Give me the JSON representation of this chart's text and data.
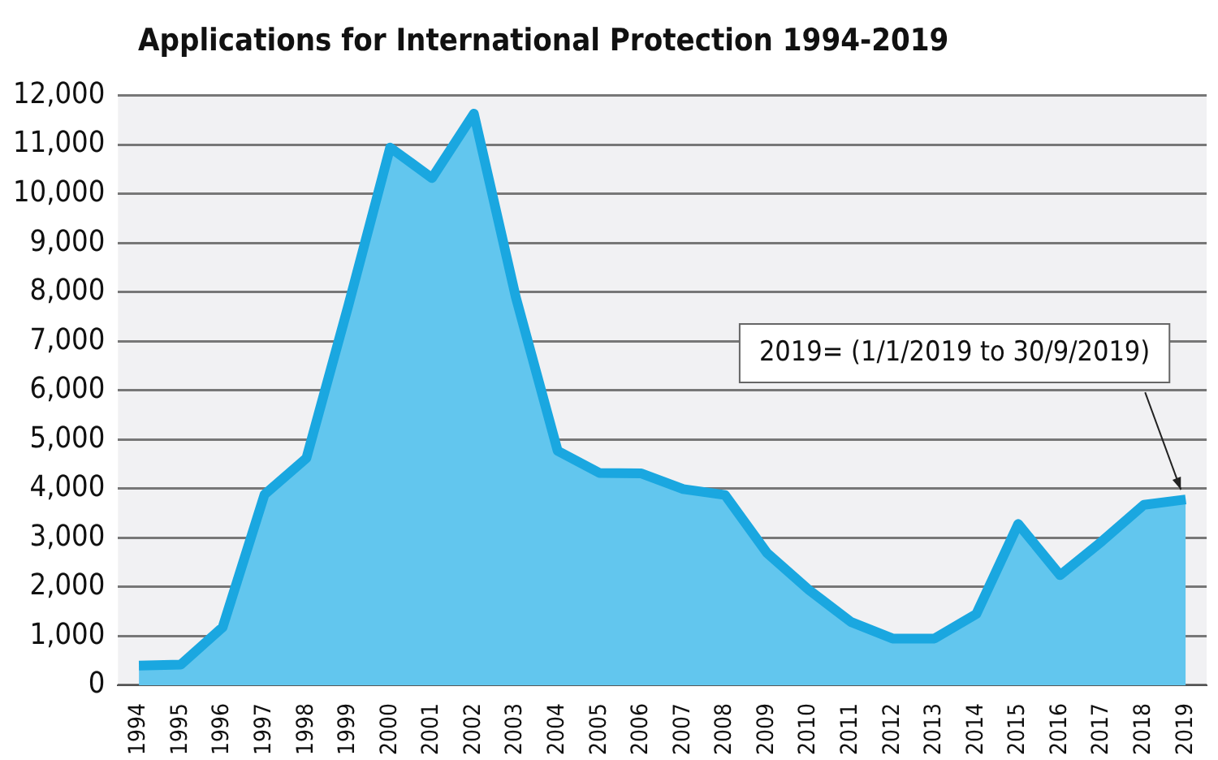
{
  "chart_data": {
    "type": "area",
    "title": "Applications for International Protection 1994-2019",
    "categories": [
      "1994",
      "1995",
      "1996",
      "1997",
      "1998",
      "1999",
      "2000",
      "2001",
      "2002",
      "2003",
      "2004",
      "2005",
      "2006",
      "2007",
      "2008",
      "2009",
      "2010",
      "2011",
      "2012",
      "2013",
      "2014",
      "2015",
      "2016",
      "2017",
      "2018",
      "2019"
    ],
    "series": [
      {
        "color": "#1aa7e0",
        "values": [
          400,
          420,
          1180,
          3880,
          4620,
          7720,
          10940,
          10320,
          11630,
          7900,
          4770,
          4320,
          4310,
          3990,
          3870,
          2690,
          1940,
          1290,
          950,
          950,
          1450,
          3280,
          2240,
          2930,
          3670,
          3780
        ]
      }
    ],
    "ylim": [
      0,
      12000
    ],
    "yticks": [
      {
        "value": 0,
        "label": "0"
      },
      {
        "value": 1000,
        "label": "1,000"
      },
      {
        "value": 2000,
        "label": "2,000"
      },
      {
        "value": 3000,
        "label": "3,000"
      },
      {
        "value": 4000,
        "label": "4,000"
      },
      {
        "value": 5000,
        "label": "5,000"
      },
      {
        "value": 6000,
        "label": "6,000"
      },
      {
        "value": 7000,
        "label": "7,000"
      },
      {
        "value": 8000,
        "label": "8,000"
      },
      {
        "value": 9000,
        "label": "9,000"
      },
      {
        "value": 10000,
        "label": "10,000"
      },
      {
        "value": 11000,
        "label": "11,000"
      },
      {
        "value": 12000,
        "label": "12,000"
      }
    ],
    "grid": "y",
    "legend": false,
    "marker": "none",
    "annotations": [
      {
        "text": "2019= (1/1/2019 to 30/9/2019)",
        "x": "2019",
        "y": 3780
      }
    ]
  }
}
